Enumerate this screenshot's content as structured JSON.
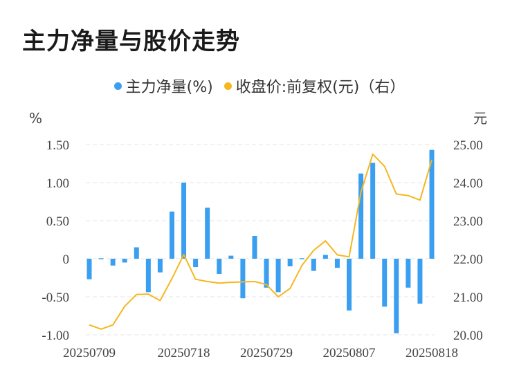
{
  "title": "主力净量与股价走势",
  "legend": {
    "bar_label": "主力净量(%)",
    "line_label": "收盘价:前复权(元)（右）"
  },
  "colors": {
    "bar": "#3a9ff0",
    "line": "#f5b71e",
    "grid": "#e4e4e4"
  },
  "chart_data": {
    "type": "bar+line",
    "title": "主力净量与股价走势",
    "left_axis": {
      "unit": "%",
      "ylim": [
        -1.0,
        1.5
      ],
      "ticks": [
        "1.50",
        "1.00",
        "0.50",
        "0",
        "-0.50",
        "-1.00"
      ],
      "tick_values": [
        1.5,
        1.0,
        0.5,
        0,
        -0.5,
        -1.0
      ]
    },
    "right_axis": {
      "unit": "元",
      "ylim": [
        20.0,
        25.0
      ],
      "ticks": [
        "25.00",
        "24.00",
        "23.00",
        "22.00",
        "21.00",
        "20.00"
      ],
      "tick_values": [
        25,
        24,
        23,
        22,
        21,
        20
      ]
    },
    "x_tick_labels": [
      "20250709",
      "20250718",
      "20250729",
      "20250807",
      "20250818"
    ],
    "x_tick_positions": [
      0,
      8,
      15,
      22,
      29
    ],
    "series": [
      {
        "name": "主力净量(%)",
        "type": "bar",
        "axis": "left",
        "values": [
          -0.27,
          -0.01,
          -0.09,
          -0.05,
          0.15,
          -0.44,
          -0.18,
          0.62,
          1.0,
          -0.11,
          0.67,
          -0.2,
          0.04,
          -0.52,
          0.3,
          -0.38,
          -0.44,
          -0.1,
          0.0,
          -0.16,
          0.05,
          -0.12,
          -0.68,
          1.12,
          1.26,
          -0.63,
          -0.98,
          -0.38,
          -0.59,
          1.43
        ]
      },
      {
        "name": "收盘价:前复权(元)（右）",
        "type": "line",
        "axis": "right",
        "values": [
          20.26,
          20.15,
          20.26,
          20.75,
          21.06,
          21.07,
          20.9,
          21.48,
          22.11,
          21.46,
          21.4,
          21.36,
          21.38,
          21.39,
          21.4,
          21.32,
          21.0,
          21.22,
          21.82,
          22.22,
          22.47,
          22.1,
          22.05,
          23.75,
          24.75,
          24.43,
          23.7,
          23.66,
          23.54,
          24.6
        ]
      }
    ]
  }
}
